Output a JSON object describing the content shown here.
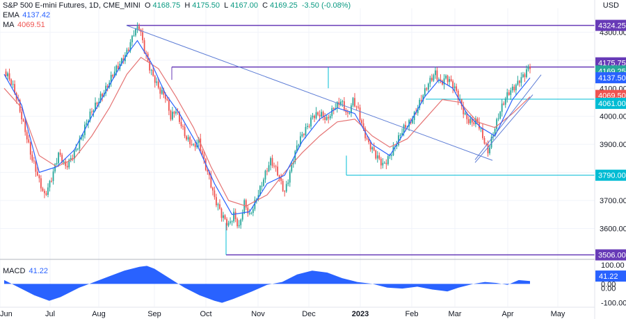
{
  "header": {
    "symbol": "S&P 500 E-mini Futures, 1D, CME_MINI",
    "open_label": "O",
    "open": "4168.75",
    "high_label": "H",
    "high": "4175.50",
    "low_label": "L",
    "low": "4167.00",
    "close_label": "C",
    "close": "4169.25",
    "change": "-3.50 (-0.08%)",
    "ema_label": "EMA",
    "ema_value": "4137.42",
    "ma_label": "MA",
    "ma_value": "4069.51",
    "macd_label": "MACD",
    "macd_value": "41.22",
    "currency": "USD"
  },
  "colors": {
    "up": "#26a69a",
    "down": "#ef5350",
    "ema": "#2962ff",
    "ma": "#e57373",
    "level_purple": "#673ab7",
    "level_teal": "#00bcd4",
    "trend": "#5b7bd5",
    "macd": "#2962ff"
  },
  "chart_data": {
    "type": "candlestick",
    "x_labels": [
      "Jun",
      "Jul",
      "Aug",
      "Sep",
      "Oct",
      "Nov",
      "Dec",
      "2023",
      "Feb",
      "Mar",
      "Apr",
      "May"
    ],
    "y_ticks": [
      3600,
      3700,
      3800,
      3900,
      4000,
      4100,
      4200,
      4300
    ],
    "ylim": [
      3495,
      4385
    ],
    "horizontal_levels": [
      4324.25,
      4175.75,
      4061.0,
      3790.0,
      3506.0
    ],
    "price_tags": [
      {
        "value": 4324.25,
        "text": "4324.25",
        "color": "#673ab7"
      },
      {
        "value": 4175.75,
        "text": "4175.75",
        "color": "#673ab7"
      },
      {
        "value": 4169.25,
        "text": "4169.25",
        "color": "#26a69a"
      },
      {
        "value": 4137.5,
        "text": "4137.50",
        "color": "#2962ff"
      },
      {
        "value": 4069.5,
        "text": "4069.50",
        "color": "#ef5350"
      },
      {
        "value": 4061.0,
        "text": "4061.00",
        "color": "#00bcd4"
      },
      {
        "value": 3790.0,
        "text": "3790.00",
        "color": "#00bcd4"
      },
      {
        "value": 3506.0,
        "text": "3506.00",
        "color": "#673ab7"
      }
    ],
    "price_path": [
      [
        0,
        4160
      ],
      [
        4,
        4110
      ],
      [
        8,
        4050
      ],
      [
        12,
        3960
      ],
      [
        16,
        3840
      ],
      [
        20,
        3760
      ],
      [
        23,
        3720
      ],
      [
        27,
        3790
      ],
      [
        31,
        3860
      ],
      [
        35,
        3810
      ],
      [
        40,
        3880
      ],
      [
        45,
        3940
      ],
      [
        50,
        4010
      ],
      [
        55,
        4080
      ],
      [
        60,
        4120
      ],
      [
        65,
        4170
      ],
      [
        70,
        4240
      ],
      [
        74,
        4300
      ],
      [
        77,
        4310
      ],
      [
        80,
        4230
      ],
      [
        83,
        4180
      ],
      [
        86,
        4140
      ],
      [
        89,
        4090
      ],
      [
        92,
        4060
      ],
      [
        95,
        3990
      ],
      [
        98,
        4030
      ],
      [
        101,
        3980
      ],
      [
        104,
        3920
      ],
      [
        108,
        3880
      ],
      [
        111,
        3910
      ],
      [
        114,
        3850
      ],
      [
        117,
        3790
      ],
      [
        120,
        3700
      ],
      [
        124,
        3640
      ],
      [
        128,
        3620
      ],
      [
        131,
        3660
      ],
      [
        134,
        3600
      ],
      [
        137,
        3680
      ],
      [
        140,
        3640
      ],
      [
        144,
        3720
      ],
      [
        148,
        3780
      ],
      [
        152,
        3830
      ],
      [
        156,
        3800
      ],
      [
        160,
        3740
      ],
      [
        164,
        3820
      ],
      [
        168,
        3900
      ],
      [
        172,
        3960
      ],
      [
        176,
        4010
      ],
      [
        180,
        4000
      ],
      [
        184,
        3980
      ],
      [
        188,
        4040
      ],
      [
        192,
        4060
      ],
      [
        196,
        3990
      ],
      [
        199,
        4050
      ],
      [
        202,
        4030
      ],
      [
        205,
        3960
      ],
      [
        208,
        3900
      ],
      [
        212,
        3850
      ],
      [
        216,
        3830
      ],
      [
        220,
        3870
      ],
      [
        224,
        3900
      ],
      [
        228,
        3950
      ],
      [
        232,
        3990
      ],
      [
        236,
        4040
      ],
      [
        240,
        4080
      ],
      [
        243,
        4120
      ],
      [
        246,
        4160
      ],
      [
        249,
        4130
      ],
      [
        252,
        4140
      ],
      [
        255,
        4110
      ],
      [
        258,
        4080
      ],
      [
        261,
        4040
      ],
      [
        264,
        4000
      ],
      [
        267,
        3980
      ],
      [
        270,
        3970
      ],
      [
        273,
        3920
      ],
      [
        276,
        3880
      ],
      [
        279,
        3950
      ],
      [
        282,
        4000
      ],
      [
        285,
        4040
      ],
      [
        288,
        4080
      ],
      [
        291,
        4110
      ],
      [
        294,
        4140
      ],
      [
        297,
        4150
      ],
      [
        300,
        4169
      ]
    ],
    "ema_path": [
      [
        0,
        4150
      ],
      [
        10,
        4040
      ],
      [
        20,
        3800
      ],
      [
        30,
        3820
      ],
      [
        40,
        3880
      ],
      [
        50,
        4000
      ],
      [
        60,
        4110
      ],
      [
        70,
        4220
      ],
      [
        76,
        4270
      ],
      [
        84,
        4190
      ],
      [
        92,
        4080
      ],
      [
        100,
        4010
      ],
      [
        110,
        3900
      ],
      [
        120,
        3760
      ],
      [
        130,
        3650
      ],
      [
        140,
        3660
      ],
      [
        150,
        3760
      ],
      [
        160,
        3790
      ],
      [
        170,
        3910
      ],
      [
        180,
        3990
      ],
      [
        190,
        4030
      ],
      [
        200,
        4010
      ],
      [
        210,
        3900
      ],
      [
        220,
        3860
      ],
      [
        230,
        3960
      ],
      [
        240,
        4070
      ],
      [
        248,
        4130
      ],
      [
        256,
        4100
      ],
      [
        264,
        4010
      ],
      [
        272,
        3960
      ],
      [
        280,
        3930
      ],
      [
        290,
        4060
      ],
      [
        300,
        4137
      ]
    ],
    "ma_path": [
      [
        0,
        4100
      ],
      [
        10,
        4030
      ],
      [
        20,
        3860
      ],
      [
        30,
        3820
      ],
      [
        40,
        3850
      ],
      [
        50,
        3930
      ],
      [
        60,
        4030
      ],
      [
        70,
        4150
      ],
      [
        78,
        4210
      ],
      [
        88,
        4170
      ],
      [
        98,
        4070
      ],
      [
        108,
        3960
      ],
      [
        118,
        3820
      ],
      [
        128,
        3700
      ],
      [
        138,
        3680
      ],
      [
        150,
        3720
      ],
      [
        160,
        3800
      ],
      [
        170,
        3870
      ],
      [
        180,
        3930
      ],
      [
        190,
        3980
      ],
      [
        200,
        3990
      ],
      [
        210,
        3930
      ],
      [
        220,
        3890
      ],
      [
        230,
        3920
      ],
      [
        240,
        3990
      ],
      [
        250,
        4060
      ],
      [
        260,
        4050
      ],
      [
        270,
        3980
      ],
      [
        280,
        3960
      ],
      [
        290,
        4010
      ],
      [
        300,
        4069.5
      ]
    ],
    "trend_lines": [
      {
        "from": [
          182,
          4324
        ],
        "to": [
          708,
          3843
        ]
      },
      {
        "from": [
          683,
          3845
        ],
        "to": [
          778,
          4148
        ]
      },
      {
        "from": [
          683,
          3835
        ],
        "to": [
          766,
          4077
        ]
      }
    ],
    "macd": {
      "label": "MACD",
      "y_ticks": [
        100,
        0,
        -100
      ],
      "ylim": [
        -120,
        115
      ],
      "zero_y_label": "0.00",
      "last_value": 41.22,
      "values_path": [
        [
          0,
          20
        ],
        [
          3,
          -10
        ],
        [
          8,
          -60
        ],
        [
          12,
          -90
        ],
        [
          15,
          -70
        ],
        [
          20,
          -20
        ],
        [
          24,
          10
        ],
        [
          28,
          40
        ],
        [
          32,
          70
        ],
        [
          36,
          90
        ],
        [
          38,
          95
        ],
        [
          40,
          80
        ],
        [
          44,
          30
        ],
        [
          48,
          -20
        ],
        [
          52,
          -60
        ],
        [
          56,
          -90
        ],
        [
          58,
          -100
        ],
        [
          61,
          -80
        ],
        [
          66,
          -40
        ],
        [
          70,
          -5
        ],
        [
          74,
          10
        ],
        [
          78,
          50
        ],
        [
          82,
          70
        ],
        [
          86,
          60
        ],
        [
          90,
          30
        ],
        [
          94,
          10
        ],
        [
          98,
          0
        ],
        [
          102,
          -20
        ],
        [
          106,
          -25
        ],
        [
          110,
          -15
        ],
        [
          114,
          -30
        ],
        [
          118,
          -40
        ],
        [
          121,
          -20
        ],
        [
          125,
          0
        ],
        [
          128,
          10
        ],
        [
          131,
          5
        ],
        [
          134,
          -5
        ],
        [
          137,
          20
        ],
        [
          140,
          15
        ]
      ]
    }
  }
}
